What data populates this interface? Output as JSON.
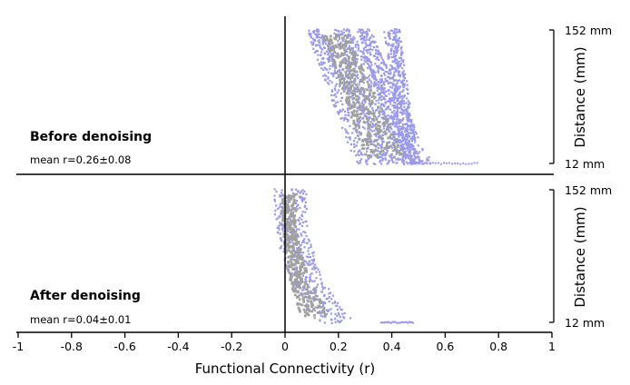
{
  "chart_data": {
    "type": "scatter",
    "xlabel": "Functional Connectivity (r)",
    "xlim": [
      -1,
      1
    ],
    "x_ticks": [
      "-1",
      "-0.8",
      "-0.6",
      "-0.4",
      "-0.2",
      "0",
      "0.2",
      "0.4",
      "0.6",
      "0.8",
      "1"
    ],
    "ylabel": "Distance (mm)",
    "y_tick_labels": {
      "top": "152 mm",
      "bottom": "12 mm"
    },
    "ylim_mm": [
      12,
      152
    ],
    "colors": {
      "mean_points": "#a0a0a0",
      "subject_points": "#9a9ae8"
    },
    "panels": [
      {
        "label": "Before denoising",
        "stat": "mean r=0.26±0.08",
        "bands": [
          {
            "top_x": [
              0.08,
              0.14
            ],
            "bottom_x": [
              0.26,
              0.42
            ],
            "shape": 1.0
          },
          {
            "top_x": [
              0.18,
              0.25
            ],
            "bottom_x": [
              0.35,
              0.52
            ],
            "shape": 1.0
          },
          {
            "top_x": [
              0.27,
              0.32
            ],
            "bottom_x": [
              0.42,
              0.55
            ],
            "shape": 1.0
          },
          {
            "top_x": [
              0.37,
              0.43
            ],
            "bottom_x": [
              0.44,
              0.5
            ],
            "shape": 1.0
          }
        ],
        "gray_band": {
          "top_x": [
            0.14,
            0.23
          ],
          "bottom_x": [
            0.3,
            0.45
          ]
        },
        "tail": {
          "x": [
            0.46,
            0.72
          ],
          "distance_mm": 12
        }
      },
      {
        "label": "After denoising",
        "stat": "mean r=0.04±0.01",
        "bands": [
          {
            "top_x": [
              -0.04,
              0.08
            ],
            "bottom_x": [
              0.12,
              0.26
            ],
            "shape": 2.5
          }
        ],
        "gray_band": {
          "top_x": [
            -0.01,
            0.04
          ],
          "bottom_x": [
            0.06,
            0.17
          ]
        },
        "tail": {
          "x": [
            0.36,
            0.48
          ],
          "distance_mm": 12
        }
      }
    ]
  }
}
